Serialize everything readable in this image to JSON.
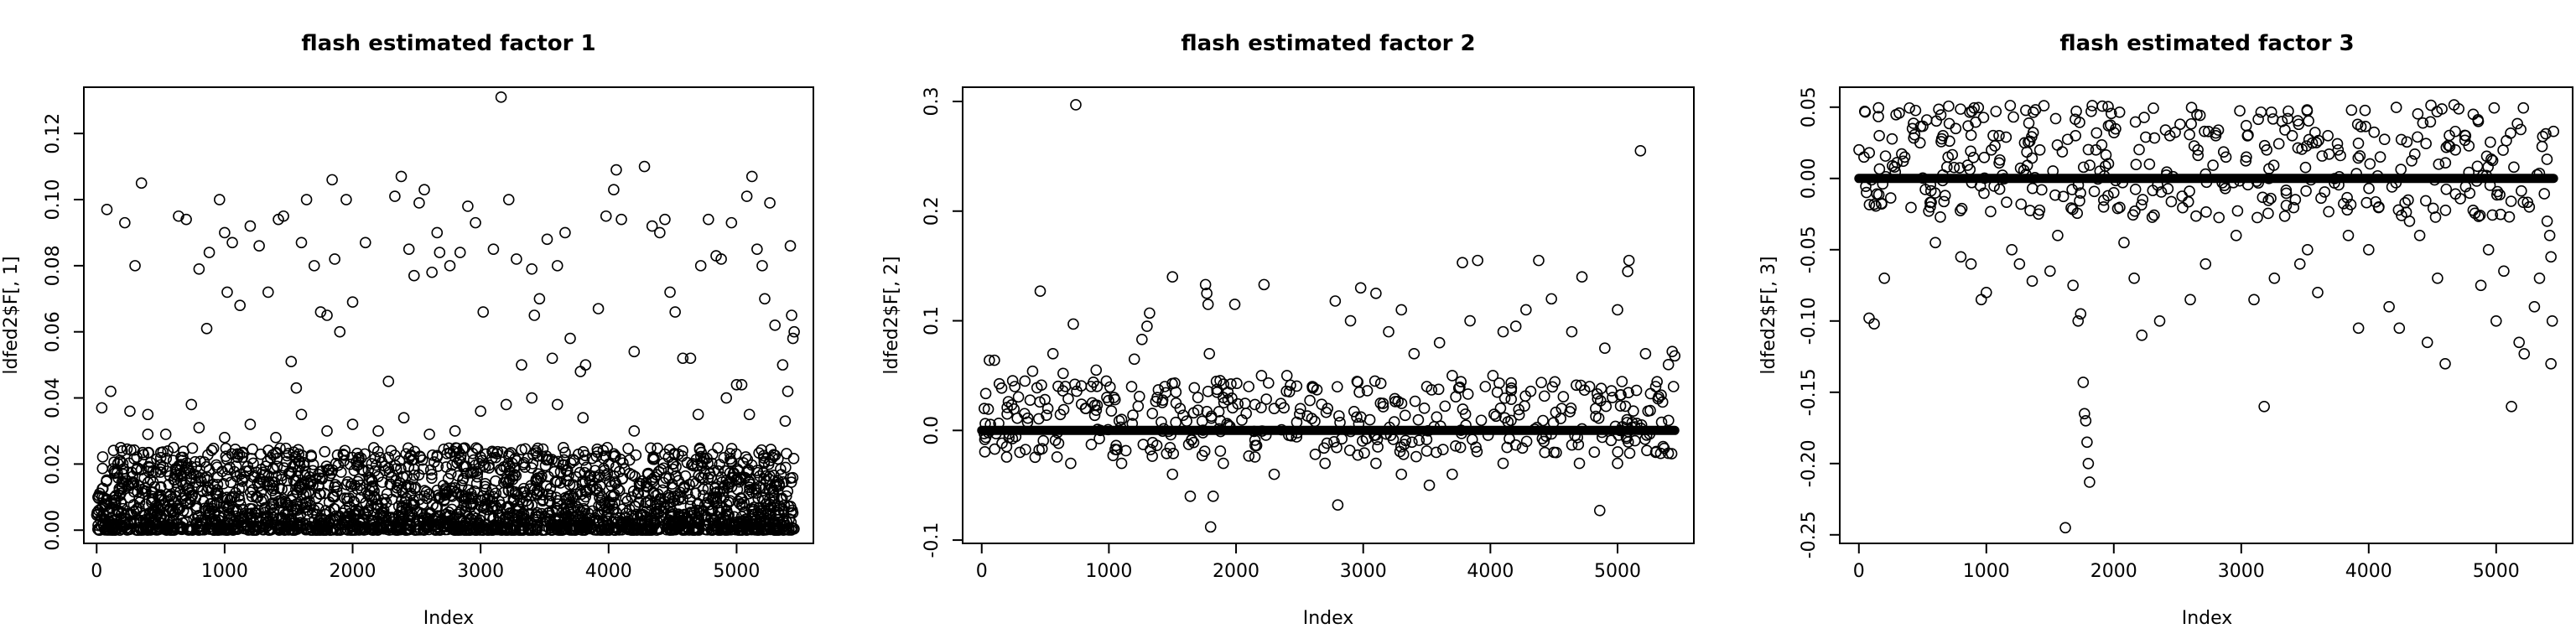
{
  "chart_data": [
    {
      "type": "scatter",
      "title": "flash estimated factor 1",
      "xlabel": "Index",
      "ylabel": "ldfed2$F[, 1]",
      "xlim": [
        -100,
        5600
      ],
      "ylim": [
        -0.004,
        0.134
      ],
      "xticks": [
        0,
        1000,
        2000,
        3000,
        4000,
        5000
      ],
      "yticks": [
        0.0,
        0.02,
        0.04,
        0.06,
        0.08,
        0.1,
        0.12
      ],
      "ytick_labels": [
        "0.00",
        "0.02",
        "0.04",
        "0.06",
        "0.08",
        "0.10",
        "0.12"
      ],
      "n_points": 5450,
      "points": [
        [
          40,
          0.037
        ],
        [
          80,
          0.097
        ],
        [
          110,
          0.042
        ],
        [
          220,
          0.093
        ],
        [
          260,
          0.036
        ],
        [
          300,
          0.08
        ],
        [
          350,
          0.105
        ],
        [
          400,
          0.035
        ],
        [
          540,
          0.029
        ],
        [
          640,
          0.095
        ],
        [
          700,
          0.094
        ],
        [
          740,
          0.038
        ],
        [
          800,
          0.079
        ],
        [
          860,
          0.061
        ],
        [
          880,
          0.084
        ],
        [
          960,
          0.1
        ],
        [
          1000,
          0.09
        ],
        [
          1020,
          0.072
        ],
        [
          1060,
          0.087
        ],
        [
          1120,
          0.068
        ],
        [
          1200,
          0.092
        ],
        [
          1270,
          0.086
        ],
        [
          1340,
          0.072
        ],
        [
          1420,
          0.094
        ],
        [
          1460,
          0.095
        ],
        [
          1520,
          0.051
        ],
        [
          1560,
          0.043
        ],
        [
          1600,
          0.087
        ],
        [
          1640,
          0.1
        ],
        [
          1700,
          0.08
        ],
        [
          1750,
          0.066
        ],
        [
          1800,
          0.065
        ],
        [
          1840,
          0.106
        ],
        [
          1860,
          0.082
        ],
        [
          1900,
          0.06
        ],
        [
          1950,
          0.1
        ],
        [
          2000,
          0.069
        ],
        [
          2100,
          0.087
        ],
        [
          2280,
          0.045
        ],
        [
          2330,
          0.101
        ],
        [
          2380,
          0.107
        ],
        [
          2440,
          0.085
        ],
        [
          2480,
          0.077
        ],
        [
          2520,
          0.099
        ],
        [
          2560,
          0.103
        ],
        [
          2620,
          0.078
        ],
        [
          2660,
          0.09
        ],
        [
          2680,
          0.084
        ],
        [
          2760,
          0.08
        ],
        [
          2840,
          0.084
        ],
        [
          2900,
          0.098
        ],
        [
          2960,
          0.093
        ],
        [
          3020,
          0.066
        ],
        [
          3100,
          0.085
        ],
        [
          3160,
          0.131
        ],
        [
          3220,
          0.1
        ],
        [
          3280,
          0.082
        ],
        [
          3320,
          0.05
        ],
        [
          3400,
          0.079
        ],
        [
          3420,
          0.065
        ],
        [
          3460,
          0.07
        ],
        [
          3520,
          0.088
        ],
        [
          3560,
          0.052
        ],
        [
          3600,
          0.08
        ],
        [
          3660,
          0.09
        ],
        [
          3700,
          0.058
        ],
        [
          3780,
          0.048
        ],
        [
          3820,
          0.05
        ],
        [
          3920,
          0.067
        ],
        [
          3980,
          0.095
        ],
        [
          4040,
          0.103
        ],
        [
          4060,
          0.109
        ],
        [
          4100,
          0.094
        ],
        [
          4200,
          0.054
        ],
        [
          4280,
          0.11
        ],
        [
          4340,
          0.092
        ],
        [
          4400,
          0.09
        ],
        [
          4440,
          0.094
        ],
        [
          4480,
          0.072
        ],
        [
          4520,
          0.066
        ],
        [
          4580,
          0.052
        ],
        [
          4640,
          0.052
        ],
        [
          4720,
          0.08
        ],
        [
          4780,
          0.094
        ],
        [
          4840,
          0.083
        ],
        [
          4880,
          0.082
        ],
        [
          4960,
          0.093
        ],
        [
          5000,
          0.044
        ],
        [
          5040,
          0.044
        ],
        [
          5080,
          0.101
        ],
        [
          5120,
          0.107
        ],
        [
          5160,
          0.085
        ],
        [
          5200,
          0.08
        ],
        [
          5220,
          0.07
        ],
        [
          5260,
          0.099
        ],
        [
          5300,
          0.062
        ],
        [
          5360,
          0.05
        ],
        [
          5400,
          0.042
        ],
        [
          5420,
          0.086
        ],
        [
          5430,
          0.065
        ],
        [
          5440,
          0.058
        ],
        [
          5450,
          0.06
        ],
        [
          5380,
          0.033
        ],
        [
          5100,
          0.035
        ],
        [
          4920,
          0.04
        ],
        [
          4700,
          0.035
        ],
        [
          4500,
          0.02
        ],
        [
          4200,
          0.03
        ],
        [
          4000,
          0.02
        ],
        [
          3800,
          0.034
        ],
        [
          3600,
          0.038
        ],
        [
          3400,
          0.04
        ],
        [
          3200,
          0.038
        ],
        [
          3000,
          0.036
        ],
        [
          2800,
          0.03
        ],
        [
          2600,
          0.029
        ],
        [
          2400,
          0.034
        ],
        [
          2200,
          0.03
        ],
        [
          2000,
          0.032
        ],
        [
          1800,
          0.03
        ],
        [
          1600,
          0.035
        ],
        [
          1400,
          0.028
        ],
        [
          1200,
          0.032
        ],
        [
          1000,
          0.028
        ],
        [
          800,
          0.031
        ],
        [
          600,
          0.025
        ],
        [
          400,
          0.029
        ],
        [
          200,
          0.024
        ]
      ],
      "background_range": [
        0.0,
        0.025
      ]
    },
    {
      "type": "scatter",
      "title": "flash estimated factor 2",
      "xlabel": "Index",
      "ylabel": "ldfed2$F[, 2]",
      "xlim": [
        -150,
        5600
      ],
      "ylim": [
        -0.103,
        0.313
      ],
      "xticks": [
        0,
        1000,
        2000,
        3000,
        4000,
        5000
      ],
      "yticks": [
        -0.1,
        0.0,
        0.1,
        0.2,
        0.3
      ],
      "ytick_labels": [
        "-0.1",
        "0.0",
        "0.1",
        "0.2",
        "0.3"
      ],
      "n_points": 5450,
      "dense_line_value": 0.0,
      "points": [
        [
          20,
          0.02
        ],
        [
          60,
          0.064
        ],
        [
          100,
          0.064
        ],
        [
          200,
          0.015
        ],
        [
          260,
          0.04
        ],
        [
          340,
          0.045
        ],
        [
          400,
          0.054
        ],
        [
          460,
          0.127
        ],
        [
          520,
          0.02
        ],
        [
          560,
          0.07
        ],
        [
          640,
          0.052
        ],
        [
          720,
          0.097
        ],
        [
          740,
          0.297
        ],
        [
          820,
          0.02
        ],
        [
          860,
          0.04
        ],
        [
          900,
          0.055
        ],
        [
          980,
          0.045
        ],
        [
          1040,
          0.03
        ],
        [
          1100,
          0.01
        ],
        [
          1200,
          0.065
        ],
        [
          1260,
          0.083
        ],
        [
          1300,
          0.095
        ],
        [
          1320,
          0.107
        ],
        [
          1380,
          0.03
        ],
        [
          1440,
          0.04
        ],
        [
          1500,
          0.14
        ],
        [
          1560,
          0.02
        ],
        [
          1640,
          -0.06
        ],
        [
          1700,
          0.03
        ],
        [
          1760,
          0.133
        ],
        [
          1770,
          0.125
        ],
        [
          1780,
          0.115
        ],
        [
          1790,
          0.07
        ],
        [
          1800,
          -0.088
        ],
        [
          1820,
          -0.06
        ],
        [
          1900,
          0.03
        ],
        [
          1990,
          0.115
        ],
        [
          2100,
          0.04
        ],
        [
          2200,
          0.05
        ],
        [
          2220,
          0.133
        ],
        [
          2300,
          0.02
        ],
        [
          2400,
          0.05
        ],
        [
          2500,
          0.015
        ],
        [
          2600,
          0.04
        ],
        [
          2720,
          0.02
        ],
        [
          2780,
          0.118
        ],
        [
          2800,
          -0.068
        ],
        [
          2900,
          0.1
        ],
        [
          2980,
          0.13
        ],
        [
          3100,
          0.125
        ],
        [
          3200,
          0.09
        ],
        [
          3300,
          0.11
        ],
        [
          3400,
          0.07
        ],
        [
          3500,
          0.04
        ],
        [
          3520,
          -0.05
        ],
        [
          3600,
          0.08
        ],
        [
          3700,
          0.05
        ],
        [
          3780,
          0.153
        ],
        [
          3840,
          0.1
        ],
        [
          3900,
          0.155
        ],
        [
          3960,
          0.04
        ],
        [
          4020,
          0.05
        ],
        [
          4100,
          0.09
        ],
        [
          4200,
          0.095
        ],
        [
          4280,
          0.11
        ],
        [
          4380,
          0.155
        ],
        [
          4480,
          0.12
        ],
        [
          4560,
          0.02
        ],
        [
          4640,
          0.09
        ],
        [
          4720,
          0.14
        ],
        [
          4780,
          0.04
        ],
        [
          4860,
          -0.073
        ],
        [
          4900,
          0.075
        ],
        [
          4960,
          0.03
        ],
        [
          5000,
          0.11
        ],
        [
          5080,
          0.145
        ],
        [
          5090,
          0.155
        ],
        [
          5180,
          0.255
        ],
        [
          5220,
          0.07
        ],
        [
          5300,
          0.04
        ],
        [
          5400,
          0.06
        ],
        [
          5430,
          0.072
        ],
        [
          5450,
          0.068
        ],
        [
          5440,
          0.04
        ],
        [
          300,
          -0.02
        ],
        [
          700,
          -0.03
        ],
        [
          1100,
          -0.03
        ],
        [
          1500,
          -0.04
        ],
        [
          1900,
          -0.03
        ],
        [
          2300,
          -0.04
        ],
        [
          2700,
          -0.03
        ],
        [
          3100,
          -0.03
        ],
        [
          3300,
          -0.04
        ],
        [
          3700,
          -0.04
        ],
        [
          4100,
          -0.03
        ],
        [
          4500,
          -0.02
        ],
        [
          4700,
          -0.03
        ],
        [
          5000,
          -0.03
        ],
        [
          5300,
          -0.02
        ]
      ]
    },
    {
      "type": "scatter",
      "title": "flash estimated factor 3",
      "xlabel": "Index",
      "ylabel": "ldfed2$F[, 3]",
      "xlim": [
        -150,
        5600
      ],
      "ylim": [
        -0.256,
        0.064
      ],
      "xticks": [
        0,
        1000,
        2000,
        3000,
        4000,
        5000
      ],
      "yticks": [
        -0.25,
        -0.2,
        -0.15,
        -0.1,
        -0.05,
        0.0,
        0.05
      ],
      "ytick_labels": [
        "-0.25",
        "-0.20",
        "-0.15",
        "-0.10",
        "-0.05",
        "0.00",
        "0.05"
      ],
      "n_points": 5450,
      "dense_line_value": 0.0,
      "points": [
        [
          40,
          0.015
        ],
        [
          80,
          -0.098
        ],
        [
          120,
          -0.102
        ],
        [
          160,
          0.03
        ],
        [
          200,
          -0.07
        ],
        [
          280,
          0.008
        ],
        [
          360,
          0.015
        ],
        [
          420,
          0.035
        ],
        [
          480,
          0.025
        ],
        [
          560,
          -0.02
        ],
        [
          600,
          -0.045
        ],
        [
          660,
          0.03
        ],
        [
          700,
          0.015
        ],
        [
          760,
          0.035
        ],
        [
          800,
          -0.055
        ],
        [
          880,
          -0.06
        ],
        [
          960,
          -0.085
        ],
        [
          1000,
          -0.08
        ],
        [
          1040,
          0.02
        ],
        [
          1100,
          0.03
        ],
        [
          1200,
          -0.05
        ],
        [
          1260,
          -0.06
        ],
        [
          1300,
          0.025
        ],
        [
          1360,
          -0.072
        ],
        [
          1420,
          0.02
        ],
        [
          1500,
          -0.065
        ],
        [
          1560,
          -0.04
        ],
        [
          1620,
          -0.245
        ],
        [
          1680,
          -0.075
        ],
        [
          1700,
          0.03
        ],
        [
          1720,
          -0.1
        ],
        [
          1740,
          -0.095
        ],
        [
          1760,
          -0.143
        ],
        [
          1770,
          -0.165
        ],
        [
          1780,
          -0.17
        ],
        [
          1790,
          -0.185
        ],
        [
          1800,
          -0.2
        ],
        [
          1810,
          -0.213
        ],
        [
          1860,
          0.02
        ],
        [
          1920,
          -0.02
        ],
        [
          2000,
          -0.01
        ],
        [
          2080,
          -0.045
        ],
        [
          2160,
          -0.07
        ],
        [
          2220,
          -0.11
        ],
        [
          2280,
          0.01
        ],
        [
          2360,
          -0.1
        ],
        [
          2440,
          0.03
        ],
        [
          2520,
          0.038
        ],
        [
          2600,
          -0.085
        ],
        [
          2660,
          0.02
        ],
        [
          2720,
          -0.06
        ],
        [
          2800,
          0.03
        ],
        [
          2880,
          0.015
        ],
        [
          2960,
          -0.04
        ],
        [
          3040,
          0.015
        ],
        [
          3100,
          -0.085
        ],
        [
          3180,
          -0.16
        ],
        [
          3200,
          0.02
        ],
        [
          3260,
          -0.07
        ],
        [
          3320,
          0.04
        ],
        [
          3400,
          0.03
        ],
        [
          3460,
          -0.06
        ],
        [
          3520,
          -0.05
        ],
        [
          3600,
          -0.08
        ],
        [
          3680,
          0.03
        ],
        [
          3760,
          0.02
        ],
        [
          3840,
          -0.04
        ],
        [
          3920,
          -0.105
        ],
        [
          4000,
          -0.05
        ],
        [
          4080,
          -0.02
        ],
        [
          4160,
          -0.09
        ],
        [
          4240,
          -0.105
        ],
        [
          4320,
          -0.03
        ],
        [
          4400,
          -0.04
        ],
        [
          4460,
          -0.115
        ],
        [
          4540,
          -0.07
        ],
        [
          4600,
          -0.13
        ],
        [
          4680,
          0.02
        ],
        [
          4760,
          0.03
        ],
        [
          4820,
          0.045
        ],
        [
          4860,
          0.04
        ],
        [
          4880,
          -0.075
        ],
        [
          4940,
          -0.05
        ],
        [
          5000,
          -0.1
        ],
        [
          5060,
          -0.065
        ],
        [
          5120,
          -0.16
        ],
        [
          5180,
          -0.115
        ],
        [
          5220,
          -0.123
        ],
        [
          5260,
          -0.02
        ],
        [
          5300,
          -0.09
        ],
        [
          5340,
          -0.07
        ],
        [
          5400,
          -0.03
        ],
        [
          5430,
          -0.13
        ],
        [
          5440,
          -0.1
        ],
        [
          5450,
          0.033
        ],
        [
          5420,
          -0.04
        ],
        [
          5430,
          -0.055
        ]
      ]
    }
  ]
}
